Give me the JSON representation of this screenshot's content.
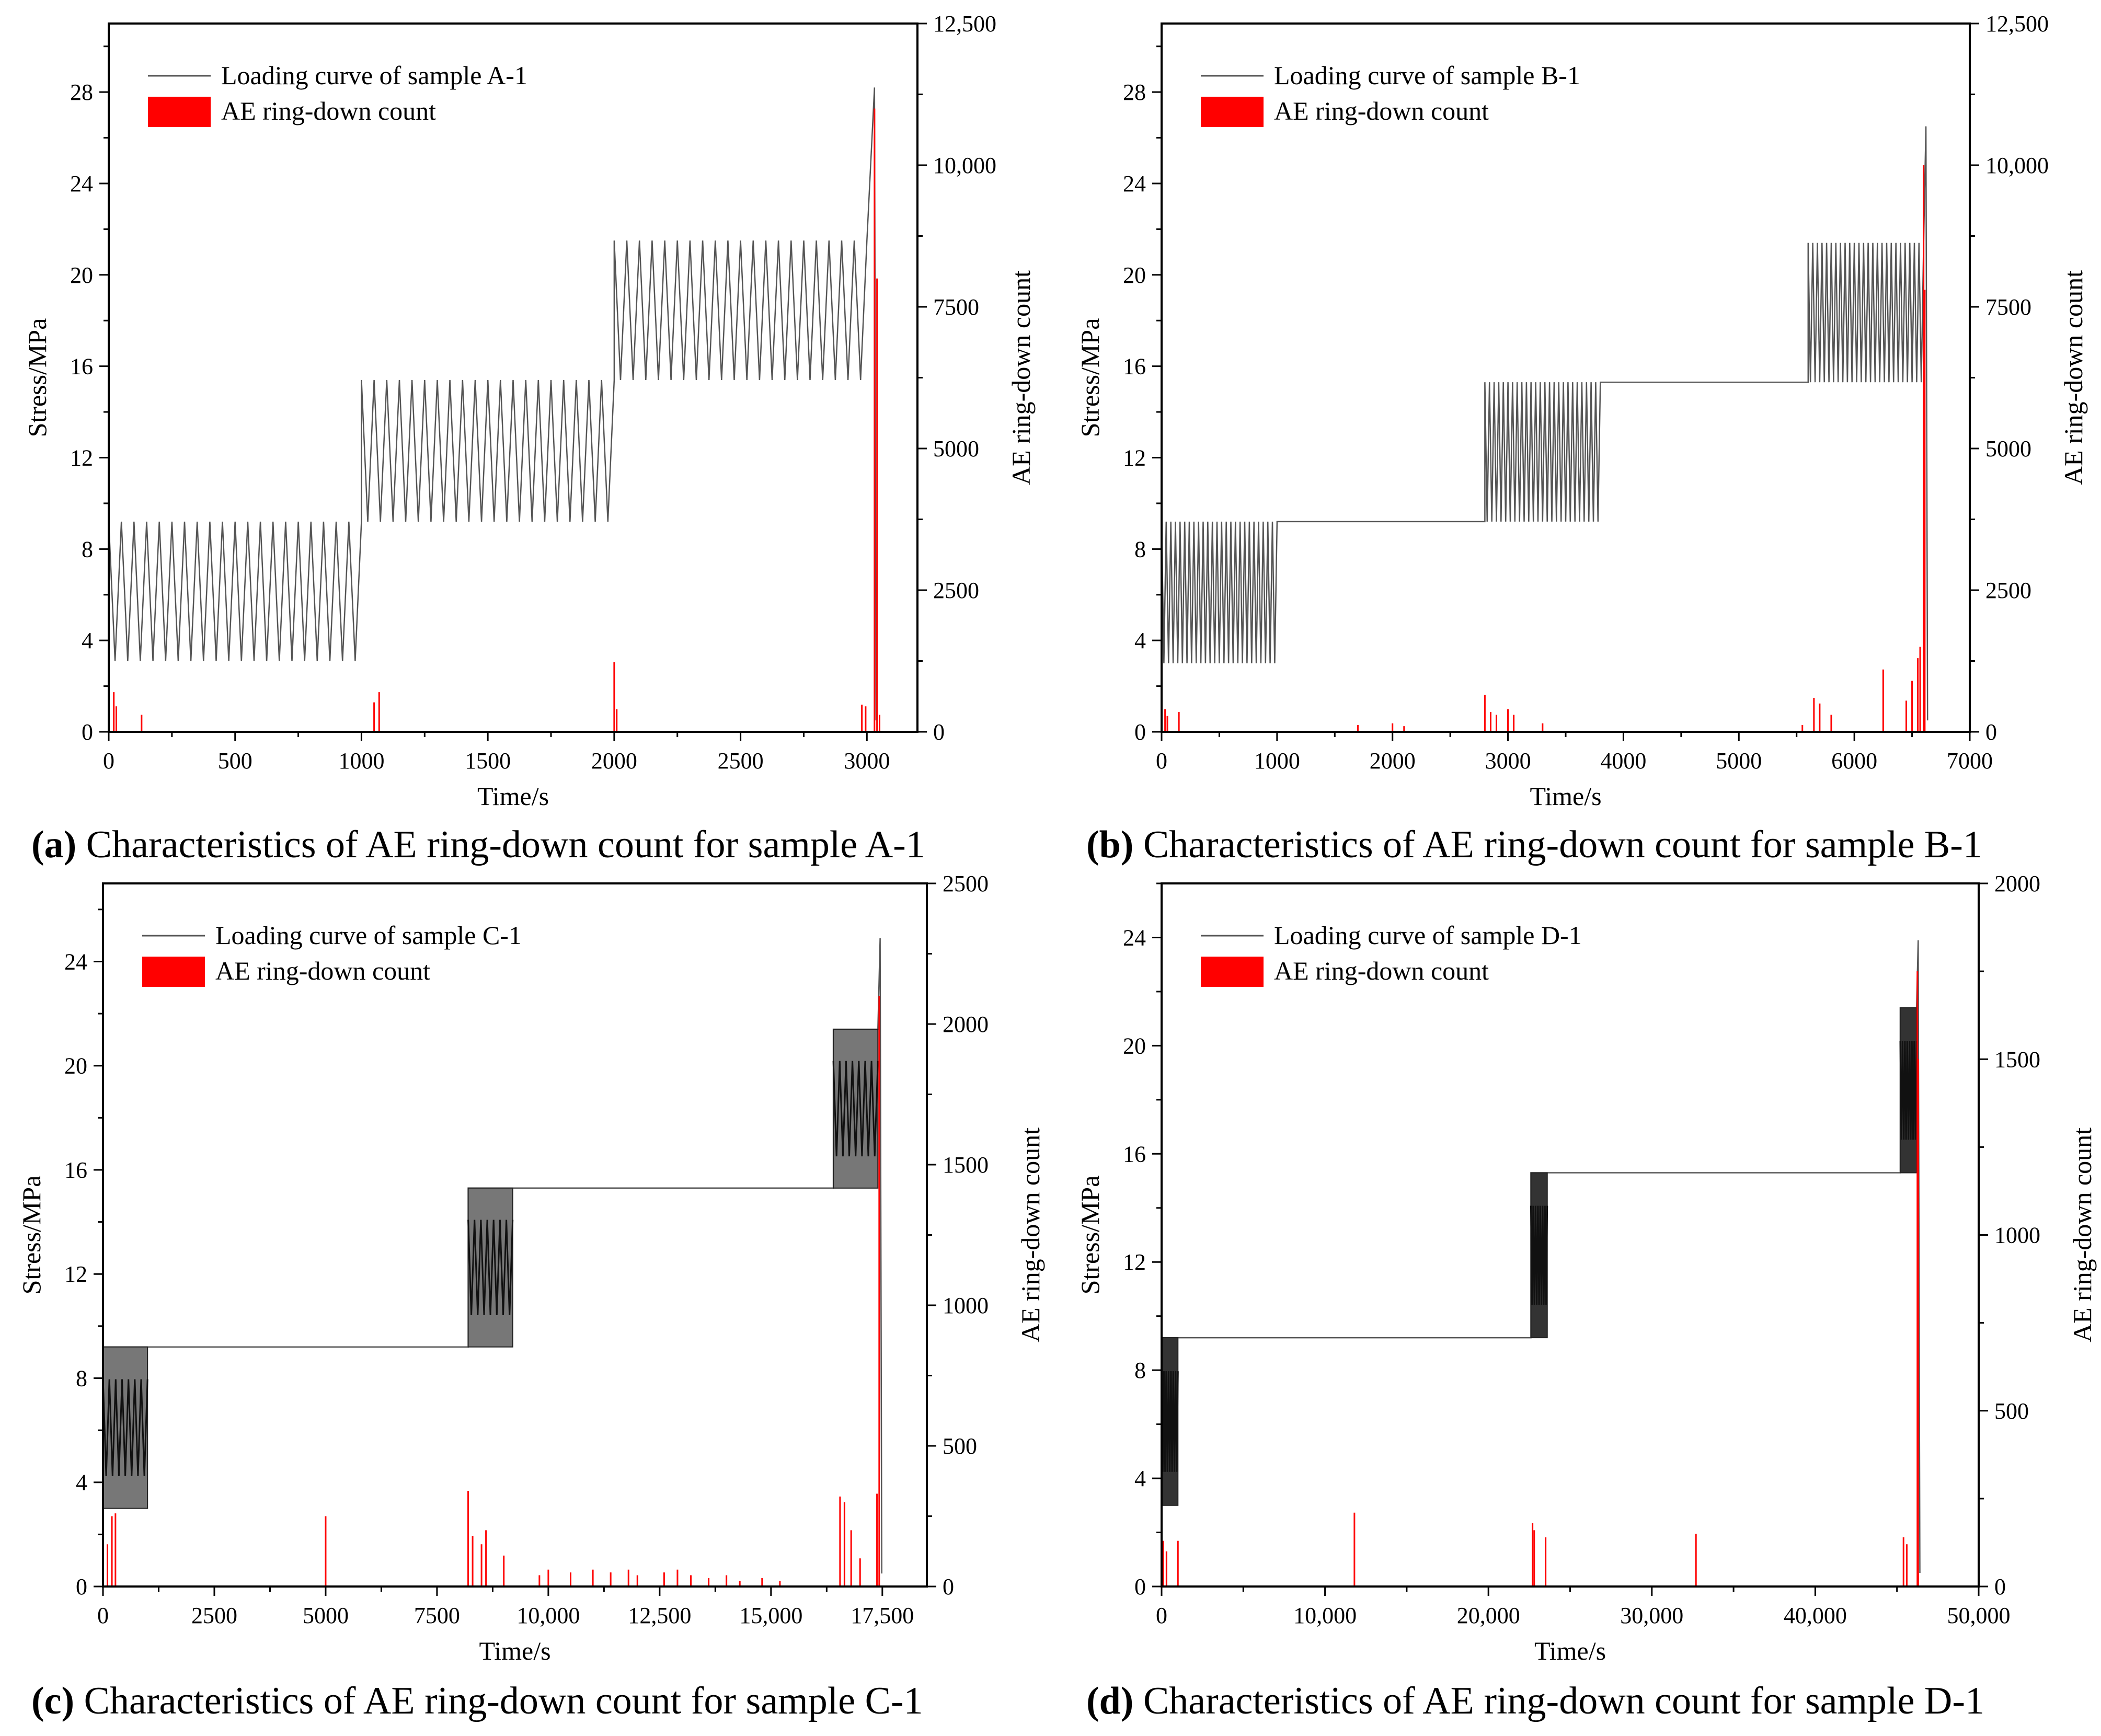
{
  "figure": {
    "x_axis_label": "Time/s",
    "y_axis_label": "Stress/MPa",
    "y2_axis_label": "AE ring-down count",
    "legend_ae": "AE ring-down count",
    "colors": {
      "loading": "#555555",
      "ae": "#ff0000",
      "block_dark": "#333333",
      "block_light": "#777777"
    }
  },
  "chart_data": [
    {
      "type": "line",
      "id": "a",
      "caption_letter": "(a)",
      "caption_text": " Characteristics of AE ring-down count for sample A-1",
      "legend_loading": "Loading curve of sample A-1",
      "xlim": [
        0,
        3200
      ],
      "ylim": [
        0,
        31
      ],
      "y2lim": [
        0,
        12500
      ],
      "x_ticks": [
        0,
        500,
        1000,
        1500,
        2000,
        2500,
        3000
      ],
      "x_tick_labels": [
        "0",
        "500",
        "1000",
        "1500",
        "2000",
        "2500",
        "3000"
      ],
      "y_ticks": [
        0,
        4,
        8,
        12,
        16,
        20,
        24,
        28
      ],
      "y_tick_labels": [
        "0",
        "4",
        "8",
        "12",
        "16",
        "20",
        "24",
        "28"
      ],
      "y2_ticks": [
        0,
        2500,
        5000,
        7500,
        10000,
        12500
      ],
      "y2_tick_labels": [
        "0",
        "2500",
        "5000",
        "7500",
        "10,000",
        "12,500"
      ],
      "cycle_style": "zigzag",
      "stages": [
        {
          "start": 0,
          "end": 1000,
          "low": 3.1,
          "high": 9.2,
          "cycles": 20
        },
        {
          "start": 1000,
          "end": 2000,
          "low": 9.2,
          "high": 15.4,
          "cycles": 20
        },
        {
          "start": 2000,
          "end": 3000,
          "low": 15.4,
          "high": 21.5,
          "cycles": 20
        }
      ],
      "failure": {
        "time": 3030,
        "peak": 28.2
      },
      "ae": [
        [
          20,
          700
        ],
        [
          30,
          450
        ],
        [
          130,
          300
        ],
        [
          1050,
          520
        ],
        [
          1070,
          700
        ],
        [
          2000,
          1230
        ],
        [
          2010,
          400
        ],
        [
          2980,
          480
        ],
        [
          2995,
          450
        ],
        [
          3030,
          11000
        ],
        [
          3040,
          8000
        ],
        [
          3050,
          300
        ]
      ]
    },
    {
      "type": "line",
      "id": "b",
      "caption_letter": "(b)",
      "caption_text": " Characteristics of AE ring-down count for sample B-1",
      "legend_loading": "Loading curve of sample B-1",
      "xlim": [
        0,
        7000
      ],
      "ylim": [
        0,
        31
      ],
      "y2lim": [
        0,
        12500
      ],
      "x_ticks": [
        0,
        1000,
        2000,
        3000,
        4000,
        5000,
        6000,
        7000
      ],
      "x_tick_labels": [
        "0",
        "1000",
        "2000",
        "3000",
        "4000",
        "5000",
        "6000",
        "7000"
      ],
      "y_ticks": [
        0,
        4,
        8,
        12,
        16,
        20,
        24,
        28
      ],
      "y_tick_labels": [
        "0",
        "4",
        "8",
        "12",
        "16",
        "20",
        "24",
        "28"
      ],
      "y2_ticks": [
        0,
        2500,
        5000,
        7500,
        10000,
        12500
      ],
      "y2_tick_labels": [
        "0",
        "2500",
        "5000",
        "7500",
        "10,000",
        "12,500"
      ],
      "cycle_style": "zigzag",
      "stages": [
        {
          "start": 0,
          "end": 1000,
          "low": 3.0,
          "high": 9.2,
          "cycles": 25
        },
        {
          "start": 2800,
          "end": 3800,
          "low": 9.2,
          "high": 15.3,
          "cycles": 25
        },
        {
          "start": 5600,
          "end": 6600,
          "low": 15.3,
          "high": 21.4,
          "cycles": 25
        }
      ],
      "failure": {
        "time": 6620,
        "peak": 26.5
      },
      "ae": [
        [
          30,
          400
        ],
        [
          50,
          280
        ],
        [
          150,
          350
        ],
        [
          1700,
          120
        ],
        [
          2000,
          150
        ],
        [
          2100,
          100
        ],
        [
          2800,
          650
        ],
        [
          2850,
          350
        ],
        [
          2900,
          300
        ],
        [
          3000,
          400
        ],
        [
          3050,
          300
        ],
        [
          3300,
          150
        ],
        [
          5550,
          120
        ],
        [
          5650,
          600
        ],
        [
          5700,
          500
        ],
        [
          5800,
          300
        ],
        [
          6250,
          1100
        ],
        [
          6450,
          550
        ],
        [
          6500,
          900
        ],
        [
          6550,
          1300
        ],
        [
          6570,
          1500
        ],
        [
          6600,
          10000
        ],
        [
          6610,
          7800
        ]
      ]
    },
    {
      "type": "line",
      "id": "c",
      "caption_letter": "(c)",
      "caption_text": " Characteristics of AE ring-down count for sample C-1",
      "legend_loading": "Loading curve of sample C-1",
      "xlim": [
        0,
        18500
      ],
      "ylim": [
        0,
        27
      ],
      "y2lim": [
        0,
        2500
      ],
      "x_ticks": [
        0,
        2500,
        5000,
        7500,
        10000,
        12500,
        15000,
        17500
      ],
      "x_tick_labels": [
        "0",
        "2500",
        "5000",
        "7500",
        "10,000",
        "12,500",
        "15,000",
        "17,500"
      ],
      "y_ticks": [
        0,
        4,
        8,
        12,
        16,
        20,
        24
      ],
      "y_tick_labels": [
        "0",
        "4",
        "8",
        "12",
        "16",
        "20",
        "24"
      ],
      "y2_ticks": [
        0,
        500,
        1000,
        1500,
        2000,
        2500
      ],
      "y2_tick_labels": [
        "0",
        "500",
        "1000",
        "1500",
        "2000",
        "2500"
      ],
      "cycle_style": "block",
      "block_shade": "light",
      "stages": [
        {
          "start": 0,
          "end": 1000,
          "low": 3.0,
          "high": 9.2,
          "cycles": 60
        },
        {
          "start": 8200,
          "end": 9200,
          "low": 9.2,
          "high": 15.3,
          "cycles": 60
        },
        {
          "start": 16400,
          "end": 17400,
          "low": 15.3,
          "high": 21.4,
          "cycles": 60
        }
      ],
      "failure": {
        "time": 17450,
        "peak": 24.9
      },
      "ae": [
        [
          100,
          150
        ],
        [
          200,
          250
        ],
        [
          280,
          260
        ],
        [
          5000,
          250
        ],
        [
          8200,
          340
        ],
        [
          8300,
          180
        ],
        [
          8500,
          150
        ],
        [
          8600,
          200
        ],
        [
          9000,
          110
        ],
        [
          9800,
          40
        ],
        [
          10000,
          60
        ],
        [
          10500,
          50
        ],
        [
          11000,
          60
        ],
        [
          11400,
          50
        ],
        [
          11800,
          60
        ],
        [
          12000,
          40
        ],
        [
          12600,
          50
        ],
        [
          12900,
          60
        ],
        [
          13200,
          40
        ],
        [
          13600,
          30
        ],
        [
          14000,
          40
        ],
        [
          14300,
          20
        ],
        [
          14800,
          30
        ],
        [
          15200,
          20
        ],
        [
          16550,
          320
        ],
        [
          16650,
          300
        ],
        [
          16800,
          200
        ],
        [
          17000,
          100
        ],
        [
          17380,
          330
        ],
        [
          17430,
          2100
        ]
      ]
    },
    {
      "type": "line",
      "id": "d",
      "caption_letter": "(d)",
      "caption_text": " Characteristics of AE ring-down count for sample D-1",
      "legend_loading": "Loading curve of sample D-1",
      "xlim": [
        0,
        50000
      ],
      "ylim": [
        0,
        26
      ],
      "y2lim": [
        0,
        2000
      ],
      "x_ticks": [
        0,
        10000,
        20000,
        30000,
        40000,
        50000
      ],
      "x_tick_labels": [
        "0",
        "10,000",
        "20,000",
        "30,000",
        "40,000",
        "50,000"
      ],
      "y_ticks": [
        0,
        4,
        8,
        12,
        16,
        20,
        24
      ],
      "y_tick_labels": [
        "0",
        "4",
        "8",
        "12",
        "16",
        "20",
        "24"
      ],
      "y2_ticks": [
        0,
        500,
        1000,
        1500,
        2000
      ],
      "y2_tick_labels": [
        "0",
        "500",
        "1000",
        "1500",
        "2000"
      ],
      "cycle_style": "block",
      "block_shade": "dark",
      "stages": [
        {
          "start": 0,
          "end": 1000,
          "low": 3.0,
          "high": 9.2,
          "cycles": 60
        },
        {
          "start": 22600,
          "end": 23600,
          "low": 9.2,
          "high": 15.3,
          "cycles": 60
        },
        {
          "start": 45200,
          "end": 46200,
          "low": 15.3,
          "high": 21.4,
          "cycles": 60
        }
      ],
      "failure": {
        "time": 46300,
        "peak": 23.9
      },
      "ae": [
        [
          100,
          130
        ],
        [
          300,
          100
        ],
        [
          1000,
          130
        ],
        [
          11800,
          210
        ],
        [
          22700,
          180
        ],
        [
          22800,
          160
        ],
        [
          23500,
          140
        ],
        [
          32700,
          150
        ],
        [
          45400,
          140
        ],
        [
          45600,
          120
        ],
        [
          46250,
          1750
        ],
        [
          46300,
          1500
        ]
      ]
    }
  ]
}
